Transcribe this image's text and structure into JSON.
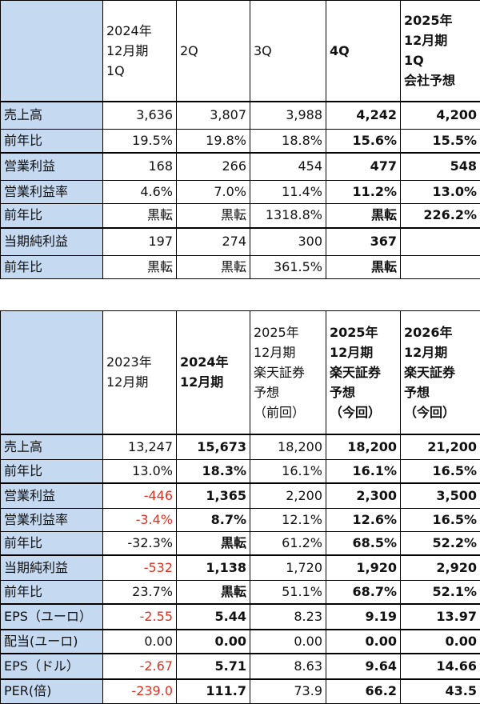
{
  "table1": {
    "header": [
      "",
      "2024年\n12月期\n1Q",
      "2Q",
      "3Q",
      "4Q",
      "2025年\n12月期\n1Q\n会社予想"
    ],
    "rows": [
      {
        "label": "売上高",
        "v": [
          "3,636",
          "3,807",
          "3,988",
          "4,242",
          "4,200"
        ]
      },
      {
        "label": "前年比",
        "v": [
          "19.5%",
          "19.8%",
          "18.8%",
          "15.6%",
          "15.5%"
        ]
      },
      {
        "label": "営業利益",
        "v": [
          "168",
          "266",
          "454",
          "477",
          "548"
        ]
      },
      {
        "label": "営業利益率",
        "v": [
          "4.6%",
          "7.0%",
          "11.4%",
          "11.2%",
          "13.0%"
        ]
      },
      {
        "label": "前年比",
        "v": [
          "黒転",
          "黒転",
          "1318.8%",
          "黒転",
          "226.2%"
        ]
      },
      {
        "label": "当期純利益",
        "v": [
          "197",
          "274",
          "300",
          "367",
          ""
        ]
      },
      {
        "label": "前年比",
        "v": [
          "黒転",
          "黒転",
          "361.5%",
          "黒転",
          ""
        ]
      }
    ]
  },
  "table2": {
    "header": [
      "",
      "2023年\n12月期",
      "2024年\n12月期",
      "2025年\n12月期\n楽天証券\n予想\n（前回）",
      "2025年\n12月期\n楽天証券\n予想\n（今回）",
      "2026年\n12月期\n楽天証券\n予想\n（今回）"
    ],
    "rows": [
      {
        "label": "売上高",
        "v": [
          "13,247",
          "15,673",
          "18,200",
          "18,200",
          "21,200"
        ]
      },
      {
        "label": "前年比",
        "v": [
          "13.0%",
          "18.3%",
          "16.1%",
          "16.1%",
          "16.5%"
        ]
      },
      {
        "label": "営業利益",
        "v": [
          "-446",
          "1,365",
          "2,200",
          "2,300",
          "3,500"
        ]
      },
      {
        "label": "営業利益率",
        "v": [
          "-3.4%",
          "8.7%",
          "12.1%",
          "12.6%",
          "16.5%"
        ]
      },
      {
        "label": "前年比",
        "v": [
          "-32.3%",
          "黒転",
          "61.2%",
          "68.5%",
          "52.2%"
        ]
      },
      {
        "label": "当期純利益",
        "v": [
          "-532",
          "1,138",
          "1,720",
          "1,920",
          "2,920"
        ]
      },
      {
        "label": "前年比",
        "v": [
          "23.7%",
          "黒転",
          "51.1%",
          "68.7%",
          "52.1%"
        ]
      },
      {
        "label": "EPS（ユーロ）",
        "v": [
          "-2.55",
          "5.44",
          "8.23",
          "9.19",
          "13.97"
        ]
      },
      {
        "label": "配当(ユーロ)",
        "v": [
          "0.00",
          "0.00",
          "0.00",
          "0.00",
          "0.00"
        ]
      },
      {
        "label": "EPS（ドル）",
        "v": [
          "-2.67",
          "5.71",
          "8.63",
          "9.64",
          "14.66"
        ]
      },
      {
        "label": "PER(倍)",
        "v": [
          "-239.0",
          "111.7",
          "73.9",
          "66.2",
          "43.5"
        ]
      }
    ]
  },
  "colors": {
    "label_bg": "#c5d9f1",
    "negative": "#e0301e",
    "border": "#000000"
  }
}
